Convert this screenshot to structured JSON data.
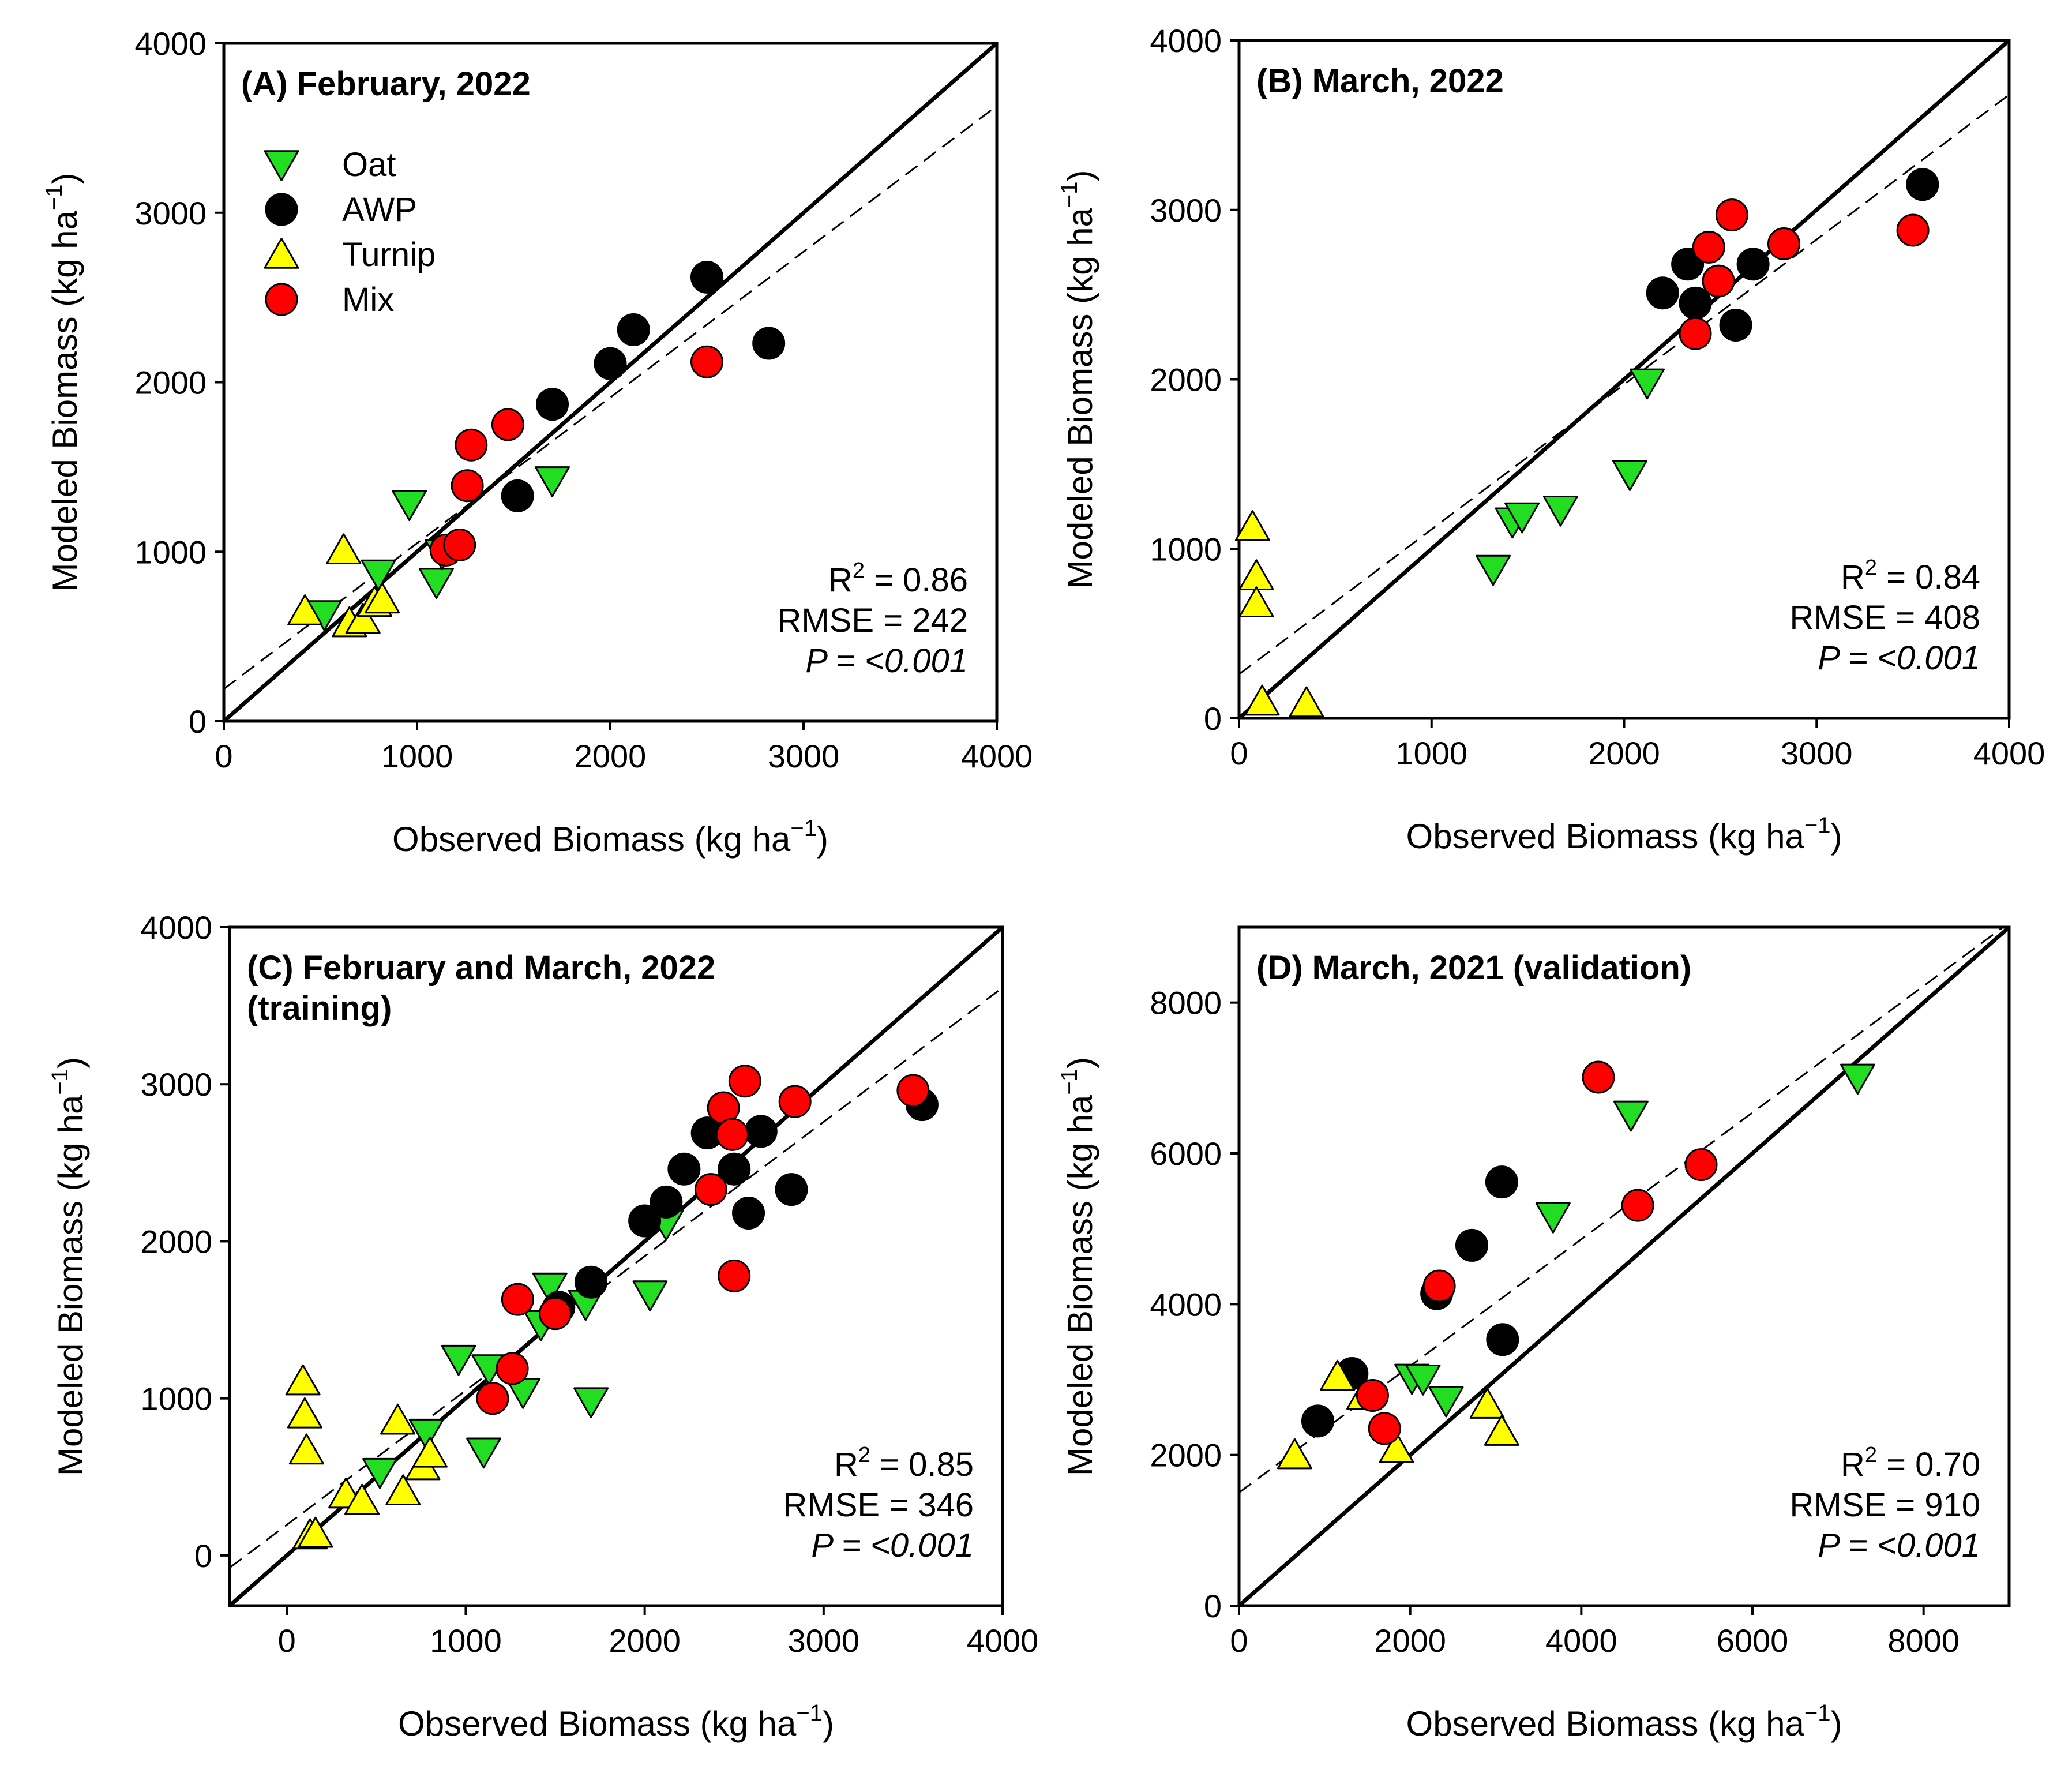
{
  "legend": [
    {
      "key": "oat",
      "label": "Oat",
      "marker": "triangle-down",
      "color": "#22dd22"
    },
    {
      "key": "awp",
      "label": "AWP",
      "marker": "circle",
      "color": "#000000"
    },
    {
      "key": "turnip",
      "label": "Turnip",
      "marker": "triangle-up",
      "color": "#ffff00"
    },
    {
      "key": "mix",
      "label": "Mix",
      "marker": "circle",
      "color": "#ff0000"
    }
  ],
  "chart_data": [
    {
      "id": "A",
      "type": "scatter",
      "title": "(A) February, 2022",
      "title_line2": "",
      "xlabel": "Observed Biomass (kg ha",
      "ylabel": "Modeled Biomass (kg ha",
      "unit_superscript": "−1",
      "unit_close": ")",
      "xlim": [
        0,
        4000
      ],
      "ylim": [
        0,
        4000
      ],
      "xticks": [
        0,
        1000,
        2000,
        3000,
        4000
      ],
      "yticks": [
        0,
        1000,
        2000,
        3000,
        4000
      ],
      "stats": {
        "r2_prefix": "R",
        "r2_sup": "2",
        "r2_value": " = 0.86",
        "rmse": "RMSE = 242",
        "p": "P = <0.001"
      },
      "one_to_one": true,
      "fit_line": {
        "intercept": 190,
        "slope": 0.86
      },
      "series": [
        {
          "name": "Oat",
          "points": [
            [
              520,
              630
            ],
            [
              800,
              870
            ],
            [
              960,
              1280
            ],
            [
              1100,
              820
            ],
            [
              1130,
              990
            ],
            [
              1700,
              1420
            ]
          ]
        },
        {
          "name": "AWP",
          "points": [
            [
              1520,
              1330
            ],
            [
              1700,
              1870
            ],
            [
              2000,
              2110
            ],
            [
              2120,
              2310
            ],
            [
              2500,
              2620
            ],
            [
              2820,
              2230
            ]
          ]
        },
        {
          "name": "Turnip",
          "points": [
            [
              420,
              650
            ],
            [
              620,
              1010
            ],
            [
              650,
              580
            ],
            [
              720,
              600
            ],
            [
              780,
              700
            ],
            [
              820,
              720
            ]
          ]
        },
        {
          "name": "Mix",
          "points": [
            [
              1150,
              1010
            ],
            [
              1220,
              1040
            ],
            [
              1260,
              1390
            ],
            [
              1280,
              1630
            ],
            [
              1470,
              1750
            ],
            [
              2500,
              2120
            ]
          ]
        }
      ]
    },
    {
      "id": "B",
      "type": "scatter",
      "title": "(B) March, 2022",
      "title_line2": "",
      "xlabel": "Observed Biomass (kg ha",
      "ylabel": "Modeled Biomass (kg ha",
      "unit_superscript": "−1",
      "unit_close": ")",
      "xlim": [
        0,
        4000
      ],
      "ylim": [
        0,
        4000
      ],
      "xticks": [
        0,
        1000,
        2000,
        3000,
        4000
      ],
      "yticks": [
        0,
        1000,
        2000,
        3000,
        4000
      ],
      "stats": {
        "r2_prefix": "R",
        "r2_sup": "2",
        "r2_value": " = 0.84",
        "rmse": "RMSE = 408",
        "p": "P = <0.001"
      },
      "one_to_one": true,
      "fit_line": {
        "intercept": 260,
        "slope": 0.855
      },
      "series": [
        {
          "name": "Oat",
          "points": [
            [
              1320,
              880
            ],
            [
              1420,
              1160
            ],
            [
              1470,
              1190
            ],
            [
              1670,
              1230
            ],
            [
              2030,
              1440
            ],
            [
              2120,
              1980
            ]
          ]
        },
        {
          "name": "AWP",
          "points": [
            [
              2200,
              2510
            ],
            [
              2330,
              2680
            ],
            [
              2370,
              2450
            ],
            [
              2580,
              2320
            ],
            [
              2670,
              2680
            ],
            [
              3550,
              3150
            ]
          ]
        },
        {
          "name": "Turnip",
          "points": [
            [
              70,
              1130
            ],
            [
              90,
              840
            ],
            [
              90,
              680
            ],
            [
              120,
              100
            ],
            [
              350,
              90
            ]
          ]
        },
        {
          "name": "Mix",
          "points": [
            [
              2370,
              2270
            ],
            [
              2440,
              2780
            ],
            [
              2490,
              2580
            ],
            [
              2560,
              2970
            ],
            [
              2830,
              2800
            ],
            [
              3500,
              2880
            ]
          ]
        }
      ]
    },
    {
      "id": "C",
      "type": "scatter",
      "title": "(C) February and March, 2022",
      "title_line2": "(training)",
      "xlabel": "Observed Biomass (kg ha",
      "ylabel": "Modeled Biomass (kg ha",
      "unit_superscript": "−1",
      "unit_close": ")",
      "xlim": [
        -320,
        4000
      ],
      "ylim": [
        -320,
        4000
      ],
      "xticks": [
        0,
        1000,
        2000,
        3000,
        4000
      ],
      "yticks": [
        0,
        1000,
        2000,
        3000,
        4000
      ],
      "stats": {
        "r2_prefix": "R",
        "r2_sup": "2",
        "r2_value": " = 0.85",
        "rmse": "RMSE = 346",
        "p": "P = <0.001"
      },
      "one_to_one": true,
      "fit_line": {
        "intercept": 195,
        "slope": 0.855
      },
      "series": [
        {
          "name": "Oat",
          "points": [
            [
              520,
              530
            ],
            [
              780,
              780
            ],
            [
              960,
              1250
            ],
            [
              1100,
              660
            ],
            [
              1130,
              1190
            ],
            [
              1320,
              1040
            ],
            [
              1420,
              1470
            ],
            [
              1470,
              1710
            ],
            [
              1670,
              1600
            ],
            [
              1700,
              980
            ],
            [
              2030,
              1660
            ],
            [
              2120,
              2110
            ]
          ]
        },
        {
          "name": "AWP",
          "points": [
            [
              1520,
              1580
            ],
            [
              1700,
              1740
            ],
            [
              2000,
              2130
            ],
            [
              2120,
              2250
            ],
            [
              2220,
              2460
            ],
            [
              2350,
              2690
            ],
            [
              2500,
              2460
            ],
            [
              2580,
              2180
            ],
            [
              2650,
              2700
            ],
            [
              2820,
              2330
            ],
            [
              3550,
              2870
            ]
          ]
        },
        {
          "name": "Turnip",
          "points": [
            [
              90,
              1110
            ],
            [
              100,
              900
            ],
            [
              110,
              670
            ],
            [
              130,
              130
            ],
            [
              160,
              140
            ],
            [
              330,
              390
            ],
            [
              420,
              350
            ],
            [
              620,
              860
            ],
            [
              650,
              410
            ],
            [
              760,
              570
            ],
            [
              800,
              650
            ]
          ]
        },
        {
          "name": "Mix",
          "points": [
            [
              1150,
              1000
            ],
            [
              1260,
              1190
            ],
            [
              1290,
              1630
            ],
            [
              1500,
              1540
            ],
            [
              2370,
              2330
            ],
            [
              2440,
              2850
            ],
            [
              2490,
              2680
            ],
            [
              2500,
              1780
            ],
            [
              2560,
              3020
            ],
            [
              2840,
              2890
            ],
            [
              3500,
              2960
            ]
          ]
        }
      ]
    },
    {
      "id": "D",
      "type": "scatter",
      "title": "(D) March, 2021 (validation)",
      "title_line2": "",
      "xlabel": "Observed Biomass (kg ha",
      "ylabel": "Modeled Biomass (kg ha",
      "unit_superscript": "−1",
      "unit_close": ")",
      "xlim": [
        0,
        9000
      ],
      "ylim": [
        0,
        9000
      ],
      "xticks": [
        0,
        2000,
        4000,
        6000,
        8000
      ],
      "yticks": [
        0,
        2000,
        4000,
        6000,
        8000
      ],
      "stats": {
        "r2_prefix": "R",
        "r2_sup": "2",
        "r2_value": " = 0.70",
        "rmse": "RMSE = 910",
        "p": "P = <0.001"
      },
      "one_to_one": true,
      "fit_line": {
        "intercept": 1500,
        "slope": 0.84
      },
      "series": [
        {
          "name": "Oat",
          "points": [
            [
              2020,
              3020
            ],
            [
              2150,
              3010
            ],
            [
              2420,
              2720
            ],
            [
              3670,
              5160
            ],
            [
              4580,
              6510
            ],
            [
              7230,
              7000
            ]
          ]
        },
        {
          "name": "AWP",
          "points": [
            [
              920,
              2450
            ],
            [
              1320,
              3080
            ],
            [
              2310,
              4140
            ],
            [
              2720,
              4780
            ],
            [
              3070,
              5620
            ],
            [
              3080,
              3530
            ]
          ]
        },
        {
          "name": "Turnip",
          "points": [
            [
              650,
              2000
            ],
            [
              1150,
              3040
            ],
            [
              1460,
              2790
            ],
            [
              1840,
              2080
            ],
            [
              2900,
              2670
            ],
            [
              3070,
              2310
            ]
          ]
        },
        {
          "name": "Mix",
          "points": [
            [
              1560,
              2790
            ],
            [
              1700,
              2350
            ],
            [
              2340,
              4240
            ],
            [
              4200,
              7010
            ],
            [
              4660,
              5310
            ],
            [
              5400,
              5850
            ]
          ]
        }
      ]
    }
  ]
}
